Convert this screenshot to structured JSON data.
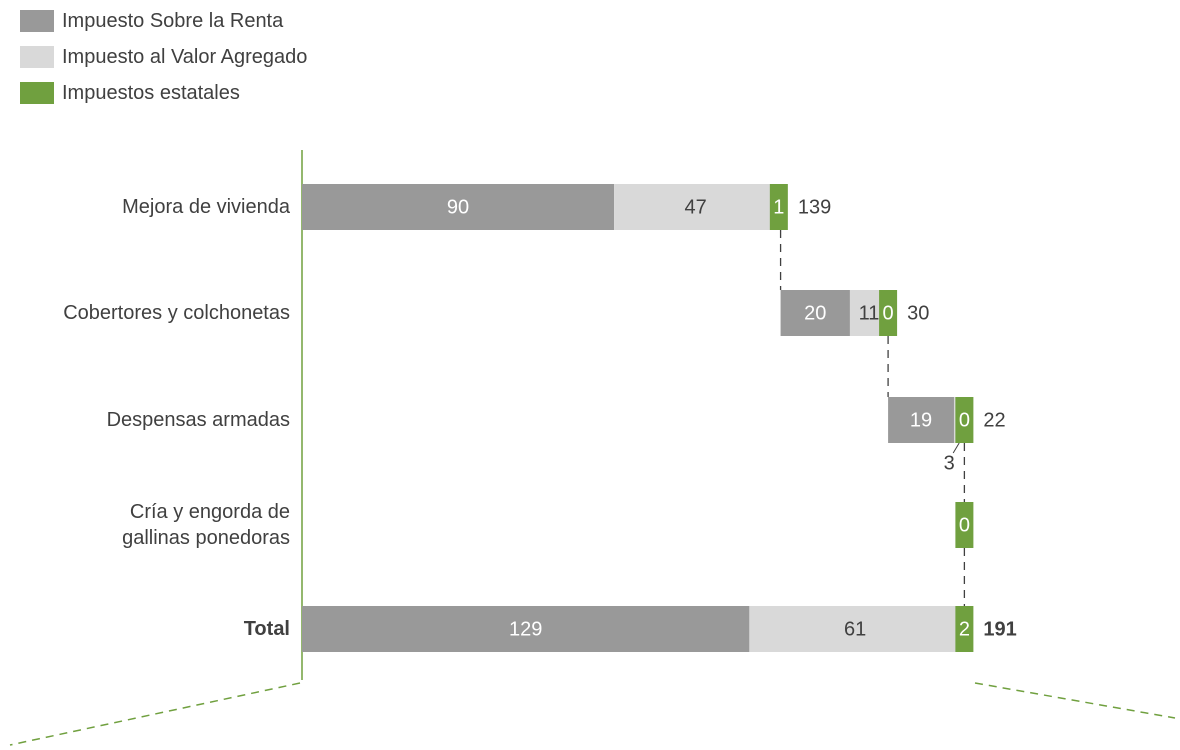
{
  "chart_data": {
    "type": "waterfall-bar",
    "categories": [
      "Mejora de vivienda",
      "Cobertores y colchonetas",
      "Despensas armadas",
      "Cría y engorda de\ngallinas ponedoras",
      "Total"
    ],
    "series": [
      {
        "name": "Impuesto Sobre la Renta",
        "color": "#999999",
        "values": [
          90,
          20,
          19,
          null,
          129
        ]
      },
      {
        "name": "Impuesto al Valor Agregado",
        "color": "#d9d9d9",
        "values": [
          47,
          11,
          3,
          null,
          61
        ]
      },
      {
        "name": "Impuestos estatales",
        "color": "#70a03f",
        "values": [
          1,
          0,
          0,
          0,
          2
        ]
      }
    ],
    "totals": [
      139,
      30,
      22,
      null,
      191
    ],
    "xlim": [
      0,
      250
    ]
  }
}
